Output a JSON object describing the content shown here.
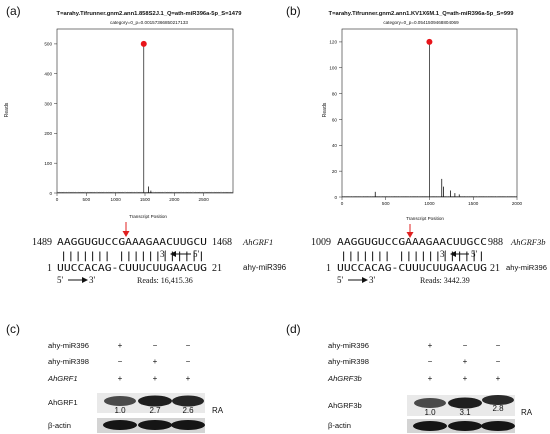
{
  "panels": {
    "a": {
      "label": "(a)",
      "plot_title": "T=arahy.Tifrunner.gnm2.ann1.858S2J.1_Q=ath-miR396a-5p_S=1479",
      "plot_subtitle": "category=0_p=0.00157366850217133",
      "xlabel": "Transcript Position",
      "ylabel": "Reads",
      "duplex": {
        "top_start": "1489",
        "top_seq": "AAGGUGUCCGAAAGAACUUGCU",
        "top_end": "1468",
        "top_gene": "AhGRF1",
        "pairs": "||||||| ||||||||||||",
        "bottom_start": "1",
        "bottom_seq": "UUCCACAG-CUUUCUUGAACUG",
        "bottom_end": "21",
        "bottom_gene": "ahy-miR396",
        "arrow_top": "3'",
        "arrow_top2": "5'",
        "arrow_bottom": "5'",
        "arrow_bottom2": "3'",
        "reads": "Reads: 16,415.36"
      }
    },
    "b": {
      "label": "(b)",
      "plot_title": "T=arahy.Tifrunner.gnm2.ann1.KV1X6M.1_Q=ath-miR396a-5p_S=999",
      "plot_subtitle": "category=0_p=0.0541509468804069",
      "xlabel": "Transcript Position",
      "ylabel": "Reads",
      "duplex": {
        "top_start": "1009",
        "top_seq": "AAGGUGUCCGAAAGAACUUGCC",
        "top_end": "988",
        "top_gene": "AhGRF3b",
        "pairs": "||||||| ||||||||||||",
        "bottom_start": "1",
        "bottom_seq": "UUCCACAG-CUUUCUUGAACUG",
        "bottom_end": "21",
        "bottom_gene": "ahy-miR396",
        "arrow_top": "3'",
        "arrow_top2": "5'",
        "arrow_bottom": "5'",
        "arrow_bottom2": "3'",
        "reads": "Reads: 3442.39"
      }
    },
    "c": {
      "label": "(c)",
      "rows": [
        {
          "name": "ahy-miR396",
          "marks": [
            "+",
            "−",
            "−"
          ]
        },
        {
          "name": "ahy-miR398",
          "marks": [
            "−",
            "+",
            "−"
          ]
        },
        {
          "name": "AhGRF1",
          "marks": [
            "+",
            "+",
            "+"
          ]
        }
      ],
      "band1": "AhGRF1",
      "ra_values": [
        "1.0",
        "2.7",
        "2.6"
      ],
      "ra_label": "RA",
      "band2": "β-actin"
    },
    "d": {
      "label": "(d)",
      "rows": [
        {
          "name": "ahy-miR396",
          "marks": [
            "+",
            "−",
            "−"
          ]
        },
        {
          "name": "ahy-miR398",
          "marks": [
            "−",
            "+",
            "−"
          ]
        },
        {
          "name": "AhGRF3b",
          "marks": [
            "+",
            "+",
            "+"
          ]
        }
      ],
      "band1": "AhGRF3b",
      "ra_values": [
        "1.0",
        "3.1",
        "2.8"
      ],
      "ra_label": "RA",
      "band2": "β-actin"
    }
  },
  "chart_data": [
    {
      "type": "line",
      "panel": "a",
      "title": "T=arahy.Tifrunner.gnm2.ann1.858S2J.1_Q=ath-miR396a-5p_S=1479",
      "subtitle": "category=0_p=0.00157366850217133",
      "xlabel": "Transcript Position",
      "ylabel": "Reads",
      "xlim": [
        0,
        3000
      ],
      "ylim": [
        0,
        550
      ],
      "xticks": [
        0,
        500,
        1000,
        1500,
        2000,
        2500
      ],
      "yticks": [
        0,
        100,
        200,
        300,
        400,
        500
      ],
      "peak": {
        "x": 1479,
        "y": 500
      },
      "secondary_peaks": [
        {
          "x": 1560,
          "y": 22
        },
        {
          "x": 1600,
          "y": 8
        }
      ],
      "baseline": 3
    },
    {
      "type": "line",
      "panel": "b",
      "title": "T=arahy.Tifrunner.gnm2.ann1.KV1X6M.1_Q=ath-miR396a-5p_S=999",
      "subtitle": "category=0_p=0.0541509468804069",
      "xlabel": "Transcript Position",
      "ylabel": "Reads",
      "xlim": [
        0,
        2000
      ],
      "ylim": [
        0,
        130
      ],
      "xticks": [
        0,
        500,
        1000,
        1500,
        2000
      ],
      "yticks": [
        0,
        20,
        40,
        60,
        80,
        100,
        120
      ],
      "peak": {
        "x": 999,
        "y": 120
      },
      "secondary_peaks": [
        {
          "x": 380,
          "y": 4
        },
        {
          "x": 1140,
          "y": 14
        },
        {
          "x": 1160,
          "y": 8
        },
        {
          "x": 1240,
          "y": 5
        },
        {
          "x": 1290,
          "y": 3
        },
        {
          "x": 1340,
          "y": 2
        }
      ],
      "baseline": 0.5
    }
  ]
}
